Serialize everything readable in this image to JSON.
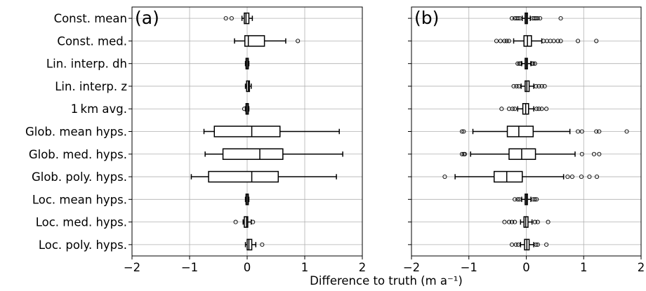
{
  "chart_data": {
    "type": "boxplot",
    "orientation": "horizontal",
    "xlabel": "Difference to truth (m a⁻¹)",
    "xlim": [
      -2,
      2
    ],
    "xticks": [
      "−2",
      "−1",
      "0",
      "1",
      "2"
    ],
    "grid": true,
    "categories": [
      "Const. mean",
      "Const. med.",
      "Lin. interp. dh",
      "Lin. interp. z",
      "1 km avg.",
      "Glob. mean hyps.",
      "Glob. med. hyps.",
      "Glob. poly. hyps.",
      "Loc. mean hyps.",
      "Loc. med. hyps.",
      "Loc. poly. hyps."
    ],
    "panels": [
      {
        "label": "(a)",
        "boxes": [
          {
            "wl": -0.09,
            "q1": -0.05,
            "med": -0.02,
            "q3": 0.03,
            "wh": 0.09,
            "fliers": [
              -0.37,
              -0.27
            ]
          },
          {
            "wl": -0.22,
            "q1": -0.04,
            "med": 0.02,
            "q3": 0.3,
            "wh": 0.67,
            "fliers": [
              0.88
            ]
          },
          {
            "wl": -0.03,
            "q1": -0.02,
            "med": 0.0,
            "q3": 0.02,
            "wh": 0.03,
            "fliers": []
          },
          {
            "wl": -0.03,
            "q1": -0.01,
            "med": 0.02,
            "q3": 0.04,
            "wh": 0.07,
            "fliers": []
          },
          {
            "wl": -0.03,
            "q1": -0.02,
            "med": 0.0,
            "q3": 0.02,
            "wh": 0.03,
            "fliers": [
              -0.05
            ]
          },
          {
            "wl": -0.75,
            "q1": -0.57,
            "med": 0.08,
            "q3": 0.57,
            "wh": 1.6,
            "fliers": []
          },
          {
            "wl": -0.73,
            "q1": -0.42,
            "med": 0.22,
            "q3": 0.62,
            "wh": 1.66,
            "fliers": []
          },
          {
            "wl": -0.97,
            "q1": -0.67,
            "med": 0.08,
            "q3": 0.54,
            "wh": 1.55,
            "fliers": []
          },
          {
            "wl": -0.03,
            "q1": -0.02,
            "med": 0.0,
            "q3": 0.02,
            "wh": 0.03,
            "fliers": []
          },
          {
            "wl": -0.07,
            "q1": -0.05,
            "med": -0.01,
            "q3": 0.01,
            "wh": 0.07,
            "fliers": [
              -0.2,
              0.1
            ]
          },
          {
            "wl": -0.03,
            "q1": 0.0,
            "med": 0.03,
            "q3": 0.08,
            "wh": 0.15,
            "fliers": [
              0.26
            ]
          }
        ]
      },
      {
        "label": "(b)",
        "boxes": [
          {
            "wl": -0.07,
            "q1": -0.02,
            "med": 0.0,
            "q3": 0.02,
            "wh": 0.07,
            "fliers": [
              -0.25,
              -0.2,
              -0.17,
              -0.14,
              -0.11,
              0.11,
              0.14,
              0.17,
              0.2,
              0.24,
              0.6
            ]
          },
          {
            "wl": -0.22,
            "q1": -0.04,
            "med": 0.02,
            "q3": 0.09,
            "wh": 0.27,
            "fliers": [
              -0.52,
              -0.45,
              -0.38,
              -0.34,
              -0.3,
              0.3,
              0.36,
              0.42,
              0.48,
              0.55,
              0.6,
              0.9,
              1.22
            ]
          },
          {
            "wl": -0.08,
            "q1": -0.02,
            "med": 0.0,
            "q3": 0.02,
            "wh": 0.08,
            "fliers": [
              -0.15,
              -0.12,
              -0.1,
              0.1,
              0.12,
              0.15
            ]
          },
          {
            "wl": -0.09,
            "q1": -0.02,
            "med": 0.01,
            "q3": 0.05,
            "wh": 0.13,
            "fliers": [
              -0.22,
              -0.17,
              -0.13,
              0.17,
              0.22,
              0.27,
              0.32
            ]
          },
          {
            "wl": -0.15,
            "q1": -0.06,
            "med": -0.01,
            "q3": 0.04,
            "wh": 0.13,
            "fliers": [
              -0.43,
              -0.3,
              -0.24,
              -0.2,
              0.18,
              0.22,
              0.27,
              0.35
            ]
          },
          {
            "wl": -0.93,
            "q1": -0.33,
            "med": -0.13,
            "q3": 0.12,
            "wh": 0.76,
            "fliers": [
              -1.12,
              -1.09,
              0.9,
              0.97,
              1.22,
              1.27,
              1.75
            ]
          },
          {
            "wl": -0.97,
            "q1": -0.3,
            "med": -0.08,
            "q3": 0.16,
            "wh": 0.85,
            "fliers": [
              -1.12,
              -1.09,
              -1.07,
              0.97,
              1.18,
              1.27
            ]
          },
          {
            "wl": -1.24,
            "q1": -0.56,
            "med": -0.34,
            "q3": -0.07,
            "wh": 0.65,
            "fliers": [
              -1.42,
              0.72,
              0.8,
              0.96,
              1.1,
              1.23
            ]
          },
          {
            "wl": -0.08,
            "q1": -0.02,
            "med": 0.0,
            "q3": 0.02,
            "wh": 0.08,
            "fliers": [
              -0.2,
              -0.15,
              -0.12,
              0.12,
              0.15,
              0.18
            ]
          },
          {
            "wl": -0.1,
            "q1": -0.04,
            "med": -0.01,
            "q3": 0.03,
            "wh": 0.1,
            "fliers": [
              -0.38,
              -0.3,
              -0.25,
              -0.2,
              0.15,
              0.2,
              0.38
            ]
          },
          {
            "wl": -0.1,
            "q1": -0.03,
            "med": 0.01,
            "q3": 0.05,
            "wh": 0.13,
            "fliers": [
              -0.25,
              -0.18,
              -0.14,
              0.17,
              0.2,
              0.35
            ]
          }
        ]
      }
    ]
  }
}
